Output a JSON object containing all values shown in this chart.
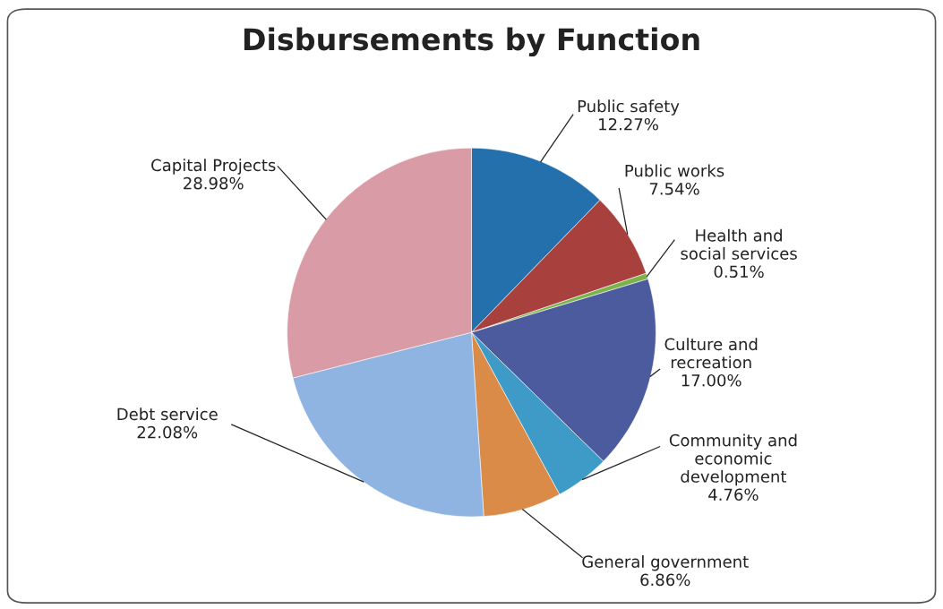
{
  "chart_data": {
    "type": "pie",
    "title": "Disbursements by Function",
    "categories": [
      "Public safety",
      "Public works",
      "Health and\nsocial services",
      "Culture and\nrecreation",
      "Community and\neconomic\ndevelopment",
      "General government",
      "Debt service",
      "Capital Projects"
    ],
    "values": [
      12.27,
      7.54,
      0.51,
      17.0,
      4.76,
      6.86,
      22.08,
      28.98
    ],
    "value_labels": [
      "12.27%",
      "7.54%",
      "0.51%",
      "17.00%",
      "4.76%",
      "6.86%",
      "22.08%",
      "28.98%"
    ],
    "colors": [
      "#2470ad",
      "#a8403e",
      "#7cb24a",
      "#4c5b9e",
      "#3e9ac6",
      "#d98b47",
      "#8fb4e2",
      "#d99ca6"
    ]
  }
}
